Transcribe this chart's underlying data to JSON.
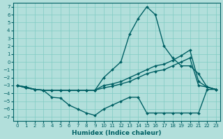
{
  "xlabel": "Humidex (Indice chaleur)",
  "xlim": [
    -0.5,
    23.5
  ],
  "ylim": [
    -7.5,
    7.5
  ],
  "xticks": [
    0,
    1,
    2,
    3,
    4,
    5,
    6,
    7,
    8,
    9,
    10,
    11,
    12,
    13,
    14,
    15,
    16,
    17,
    18,
    19,
    20,
    21,
    22,
    23
  ],
  "yticks": [
    -7,
    -6,
    -5,
    -4,
    -3,
    -2,
    -1,
    0,
    1,
    2,
    3,
    4,
    5,
    6,
    7
  ],
  "bg_color": "#b2dfdb",
  "grid_color": "#80cbc4",
  "line_color": "#006064",
  "marker": "D",
  "markersize": 2.0,
  "linewidth": 1.0,
  "line1_x": [
    0,
    1,
    2,
    3,
    4,
    5,
    6,
    7,
    8,
    9,
    10,
    11,
    12,
    13,
    14,
    15,
    16,
    17,
    18,
    19,
    20,
    21,
    22,
    23
  ],
  "line1_y": [
    -3.0,
    -3.2,
    -3.5,
    -3.6,
    -3.6,
    -3.6,
    -3.6,
    -3.6,
    -3.6,
    -3.6,
    -2.0,
    -1.0,
    0.0,
    3.5,
    5.5,
    7.0,
    6.0,
    2.0,
    0.5,
    -0.5,
    -0.5,
    -1.5,
    -3.2,
    -3.5
  ],
  "line2_x": [
    0,
    1,
    2,
    3,
    4,
    5,
    6,
    7,
    8,
    9,
    10,
    11,
    12,
    13,
    14,
    15,
    16,
    17,
    18,
    19,
    20,
    21,
    22,
    23
  ],
  "line2_y": [
    -3.0,
    -3.2,
    -3.5,
    -3.6,
    -3.6,
    -3.6,
    -3.6,
    -3.6,
    -3.6,
    -3.6,
    -3.0,
    -2.8,
    -2.5,
    -2.0,
    -1.5,
    -1.0,
    -0.5,
    -0.3,
    0.2,
    0.8,
    1.5,
    -2.5,
    -3.2,
    -3.5
  ],
  "line3_x": [
    0,
    1,
    2,
    3,
    4,
    5,
    6,
    7,
    8,
    9,
    10,
    11,
    12,
    13,
    14,
    15,
    16,
    17,
    18,
    19,
    20,
    21,
    22,
    23
  ],
  "line3_y": [
    -3.0,
    -3.3,
    -3.5,
    -3.6,
    -3.6,
    -3.6,
    -3.6,
    -3.6,
    -3.6,
    -3.6,
    -3.3,
    -3.1,
    -2.8,
    -2.5,
    -2.0,
    -1.5,
    -1.2,
    -1.0,
    -0.5,
    0.0,
    0.5,
    -3.0,
    -3.2,
    -3.5
  ],
  "line4_x": [
    0,
    1,
    2,
    3,
    4,
    5,
    6,
    7,
    8,
    9,
    10,
    11,
    12,
    13,
    14,
    15,
    16,
    17,
    18,
    19,
    20,
    21,
    22,
    23
  ],
  "line4_y": [
    -3.0,
    -3.3,
    -3.5,
    -3.6,
    -4.5,
    -4.6,
    -5.5,
    -6.0,
    -6.5,
    -6.8,
    -6.0,
    -5.5,
    -5.0,
    -4.5,
    -4.5,
    -6.5,
    -6.5,
    -6.5,
    -6.5,
    -6.5,
    -6.5,
    -6.5,
    -3.5,
    -3.5
  ]
}
